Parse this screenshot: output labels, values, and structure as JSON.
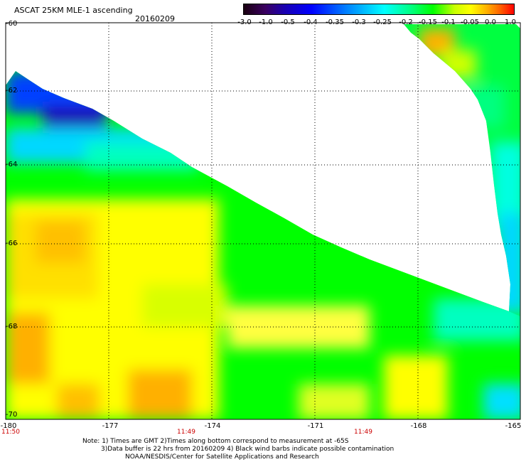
{
  "header": {
    "title": "ASCAT 25KM MLE-1 ascending",
    "date": "20160209"
  },
  "colorbar": {
    "ticks": [
      "-3.0",
      "-1.0",
      "-0.5",
      "-0.4",
      "-0.35",
      "-0.3",
      "-0.25",
      "-0.2",
      "-0.15",
      "-0.1",
      "-0.05",
      "0.0",
      "1.0"
    ]
  },
  "axes": {
    "y_labels": [
      "-60",
      "-62",
      "-64",
      "-66",
      "-68",
      "-70"
    ],
    "x_labels": [
      "-180",
      "-177",
      "-174",
      "-171",
      "-168",
      "-165"
    ],
    "time_labels": [
      "11:50",
      "11:49",
      "11:49"
    ]
  },
  "notes": {
    "line1": "Note: 1) Times are GMT 2)Times along bottom correspond to measurement at -65S",
    "line2": "3)Data buffer is 22 hrs from 20160209 4) Black wind barbs indicate possible contamination",
    "line3": "NOAA/NESDIS/Center for Satellite Applications and Research"
  },
  "colors": {
    "deep": "#1a00b0",
    "blue": "#0040ff",
    "cyan": "#00ffff",
    "green": "#00ff00",
    "yellow": "#ffff00",
    "orange": "#ffb000"
  }
}
